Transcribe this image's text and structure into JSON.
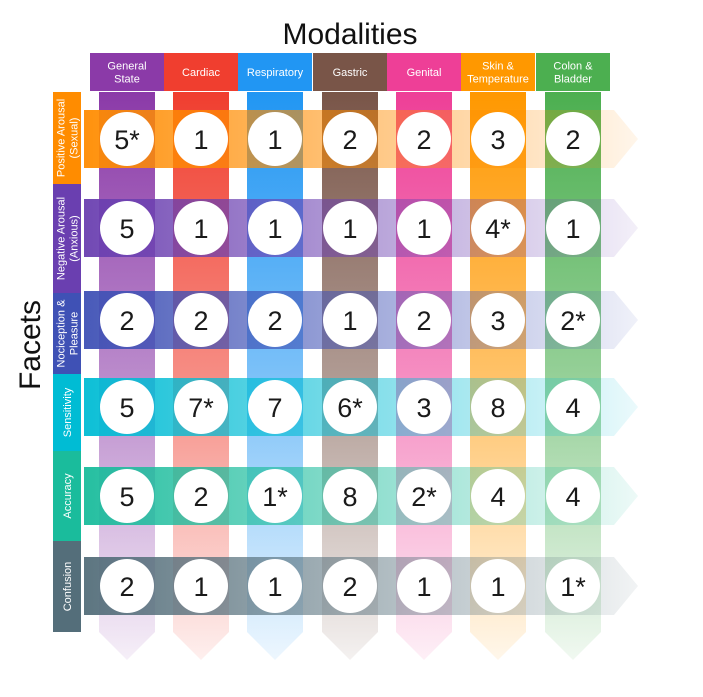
{
  "title": "Modalities",
  "side_title": "Facets",
  "modalities": [
    {
      "label": "General State",
      "color": "#8b3aa8"
    },
    {
      "label": "Cardiac",
      "color": "#f03e2f"
    },
    {
      "label": "Respiratory",
      "color": "#2196f3"
    },
    {
      "label": "Gastric",
      "color": "#795548"
    },
    {
      "label": "Genital",
      "color": "#ee3f97"
    },
    {
      "label": "Skin & Temperature",
      "color": "#ff9800"
    },
    {
      "label": "Colon & Bladder",
      "color": "#4caf50"
    }
  ],
  "facets": [
    {
      "label": "Positive Arousal (Sexual)",
      "color": "#ff8c00"
    },
    {
      "label": "Negative Arousal (Anxious)",
      "color": "#6a3fb0"
    },
    {
      "label": "Nociception & Pleasure",
      "color": "#3f51b5"
    },
    {
      "label": "Sensitivity",
      "color": "#00bcd4"
    },
    {
      "label": "Accuracy",
      "color": "#1abc9c"
    },
    {
      "label": "Confusion",
      "color": "#546e7a"
    }
  ],
  "cells": [
    [
      "5*",
      "1",
      "1",
      "2",
      "2",
      "3",
      "2"
    ],
    [
      "5",
      "1",
      "1",
      "1",
      "1",
      "4*",
      "1"
    ],
    [
      "2",
      "2",
      "2",
      "1",
      "2",
      "3",
      "2*"
    ],
    [
      "5",
      "7*",
      "7",
      "6*",
      "3",
      "8",
      "4"
    ],
    [
      "5",
      "2",
      "1*",
      "8",
      "2*",
      "4",
      "4"
    ],
    [
      "2",
      "1",
      "1",
      "2",
      "1",
      "1",
      "1*"
    ]
  ]
}
